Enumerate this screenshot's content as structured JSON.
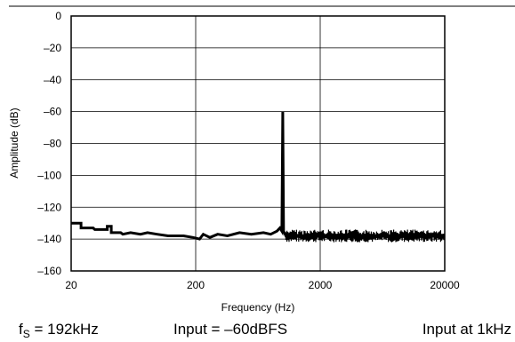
{
  "header": {
    "rule_color": "#000000"
  },
  "chart_data": {
    "type": "line",
    "xscale": "log",
    "xlim": [
      20,
      20000
    ],
    "ylim": [
      -160,
      0
    ],
    "xlabel": "Frequency (Hz)",
    "ylabel": "Amplitude (dB)",
    "xticks": [
      20,
      200,
      2000,
      20000
    ],
    "xtick_labels": [
      "20",
      "200",
      "2000",
      "20000"
    ],
    "yticks": [
      0,
      -20,
      -40,
      -60,
      -80,
      -100,
      -120,
      -140,
      -160
    ],
    "ytick_labels": [
      "0",
      "–20",
      "–40",
      "–60",
      "–80",
      "–100",
      "–120",
      "–140",
      "–160"
    ],
    "grid": true,
    "line_color": "#000000",
    "series": [
      {
        "values_note": "",
        "points": [
          [
            20,
            -130
          ],
          [
            24,
            -130
          ],
          [
            24,
            -133
          ],
          [
            30,
            -133
          ],
          [
            31,
            -134
          ],
          [
            39,
            -134
          ],
          [
            39,
            -132
          ],
          [
            42,
            -132
          ],
          [
            42,
            -136
          ],
          [
            50,
            -136
          ],
          [
            52,
            -137
          ],
          [
            60,
            -136
          ],
          [
            72,
            -137
          ],
          [
            82,
            -136
          ],
          [
            98,
            -137
          ],
          [
            120,
            -138
          ],
          [
            160,
            -138
          ],
          [
            190,
            -139
          ],
          [
            215,
            -140
          ],
          [
            230,
            -137
          ],
          [
            260,
            -139
          ],
          [
            300,
            -137
          ],
          [
            360,
            -138
          ],
          [
            450,
            -136
          ],
          [
            560,
            -137
          ],
          [
            700,
            -136
          ],
          [
            800,
            -137
          ],
          [
            900,
            -135
          ],
          [
            950,
            -133
          ],
          [
            985,
            -135
          ],
          [
            1000,
            -60
          ],
          [
            1015,
            -135
          ],
          [
            1060,
            -138
          ],
          [
            1200,
            -136
          ],
          [
            1400,
            -139
          ],
          [
            1600,
            -137
          ],
          [
            1800,
            -140
          ],
          [
            2000,
            -136
          ],
          [
            2300,
            -139
          ],
          [
            2600,
            -137
          ],
          [
            3000,
            -140
          ],
          [
            3500,
            -136
          ],
          [
            4000,
            -141
          ],
          [
            4800,
            -137
          ],
          [
            5500,
            -139
          ],
          [
            6500,
            -136
          ],
          [
            7500,
            -141
          ],
          [
            9000,
            -137
          ],
          [
            11000,
            -140
          ],
          [
            13000,
            -136
          ],
          [
            15000,
            -139
          ],
          [
            17000,
            -137
          ],
          [
            20000,
            -139
          ]
        ],
        "noise_floor_band": [
          -142,
          -134
        ]
      }
    ]
  },
  "annotations": {
    "fs_prefix": "f",
    "fs_sub": "S",
    "fs_suffix": " = 192kHz",
    "input_level": "Input = –60dBFS",
    "input_freq": "Input at 1kHz"
  }
}
